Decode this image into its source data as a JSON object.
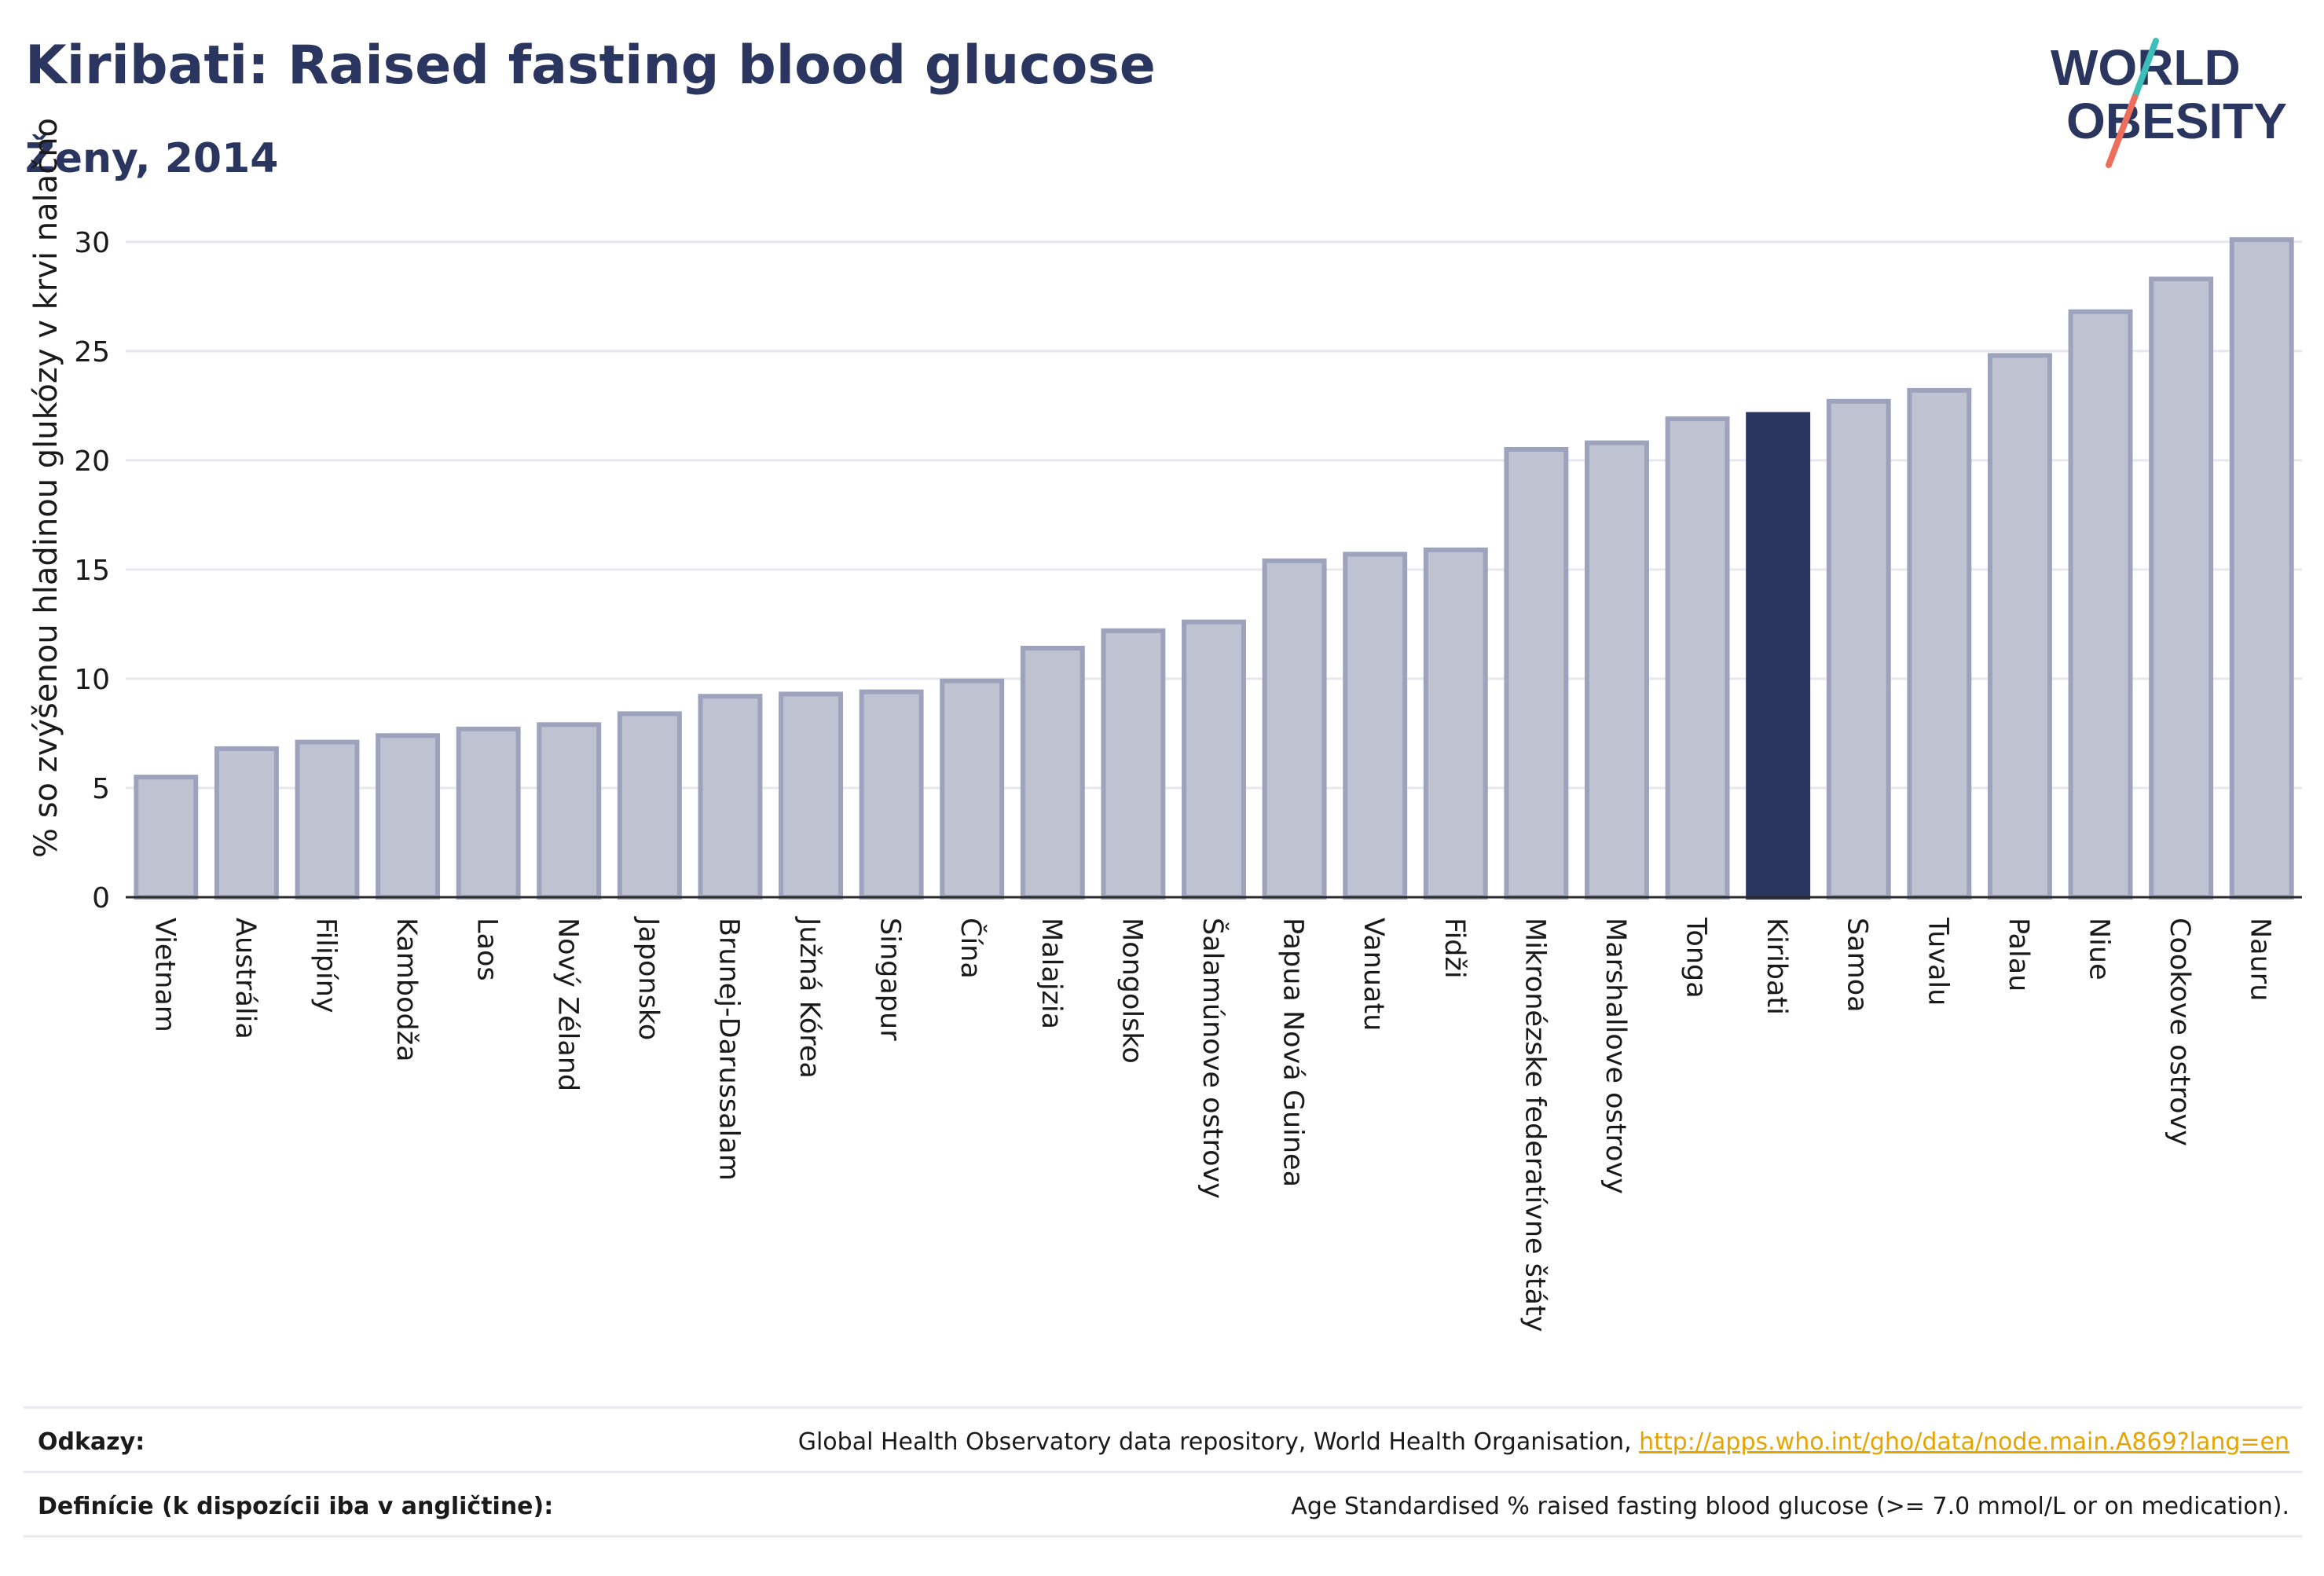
{
  "header": {
    "title": "Kiribati: Raised fasting blood glucose",
    "subtitle": "Ženy, 2014"
  },
  "logo": {
    "line1": "WORLD",
    "line2": "OBESITY"
  },
  "footer": {
    "refs_label": "Odkazy:",
    "refs_text": "Global Health Observatory data repository, World Health Organisation, ",
    "refs_link": "http://apps.who.int/gho/data/node.main.A869?lang=en",
    "defs_label": "Definície (k dispozícii iba v angličtine):",
    "defs_text": "Age Standardised % raised fasting blood glucose (>= 7.0 mmol/L or on medication)."
  },
  "colors": {
    "highlight": "#2a3560",
    "bar_fill": "#bfc2d0",
    "bar_stroke": "#9ea3bd",
    "grid": "#e6e7ef",
    "link": "#e6a400",
    "logo_teal": "#3bbfb8",
    "logo_coral": "#ee6e5c"
  },
  "chart_data": {
    "type": "bar",
    "ylabel": "% so zvýšenou hladinou glukózy v krvi nalačno",
    "xlabel": "",
    "ylim": [
      0,
      31
    ],
    "yticks": [
      0,
      5,
      10,
      15,
      20,
      25,
      30
    ],
    "grid": true,
    "highlight_category": "Kiribati",
    "categories": [
      "Vietnam",
      "Austrália",
      "Filipíny",
      "Kambodža",
      "Laos",
      "Nový Zéland",
      "Japonsko",
      "Brunej-Darussalam",
      "Južná Kórea",
      "Singapur",
      "Čína",
      "Malajzia",
      "Mongolsko",
      "Šalamúnove ostrovy",
      "Papua Nová Guinea",
      "Vanuatu",
      "Fidži",
      "Mikronézske federatívne štáty",
      "Marshallove ostrovy",
      "Tonga",
      "Kiribati",
      "Samoa",
      "Tuvalu",
      "Palau",
      "Niue",
      "Cookove ostrovy",
      "Nauru"
    ],
    "values": [
      5.5,
      6.8,
      7.1,
      7.4,
      7.7,
      7.9,
      8.4,
      9.2,
      9.3,
      9.4,
      9.9,
      11.4,
      12.2,
      12.6,
      15.4,
      15.7,
      15.9,
      20.5,
      20.8,
      21.9,
      22.1,
      22.7,
      23.2,
      24.8,
      26.8,
      28.3,
      30.1
    ]
  }
}
